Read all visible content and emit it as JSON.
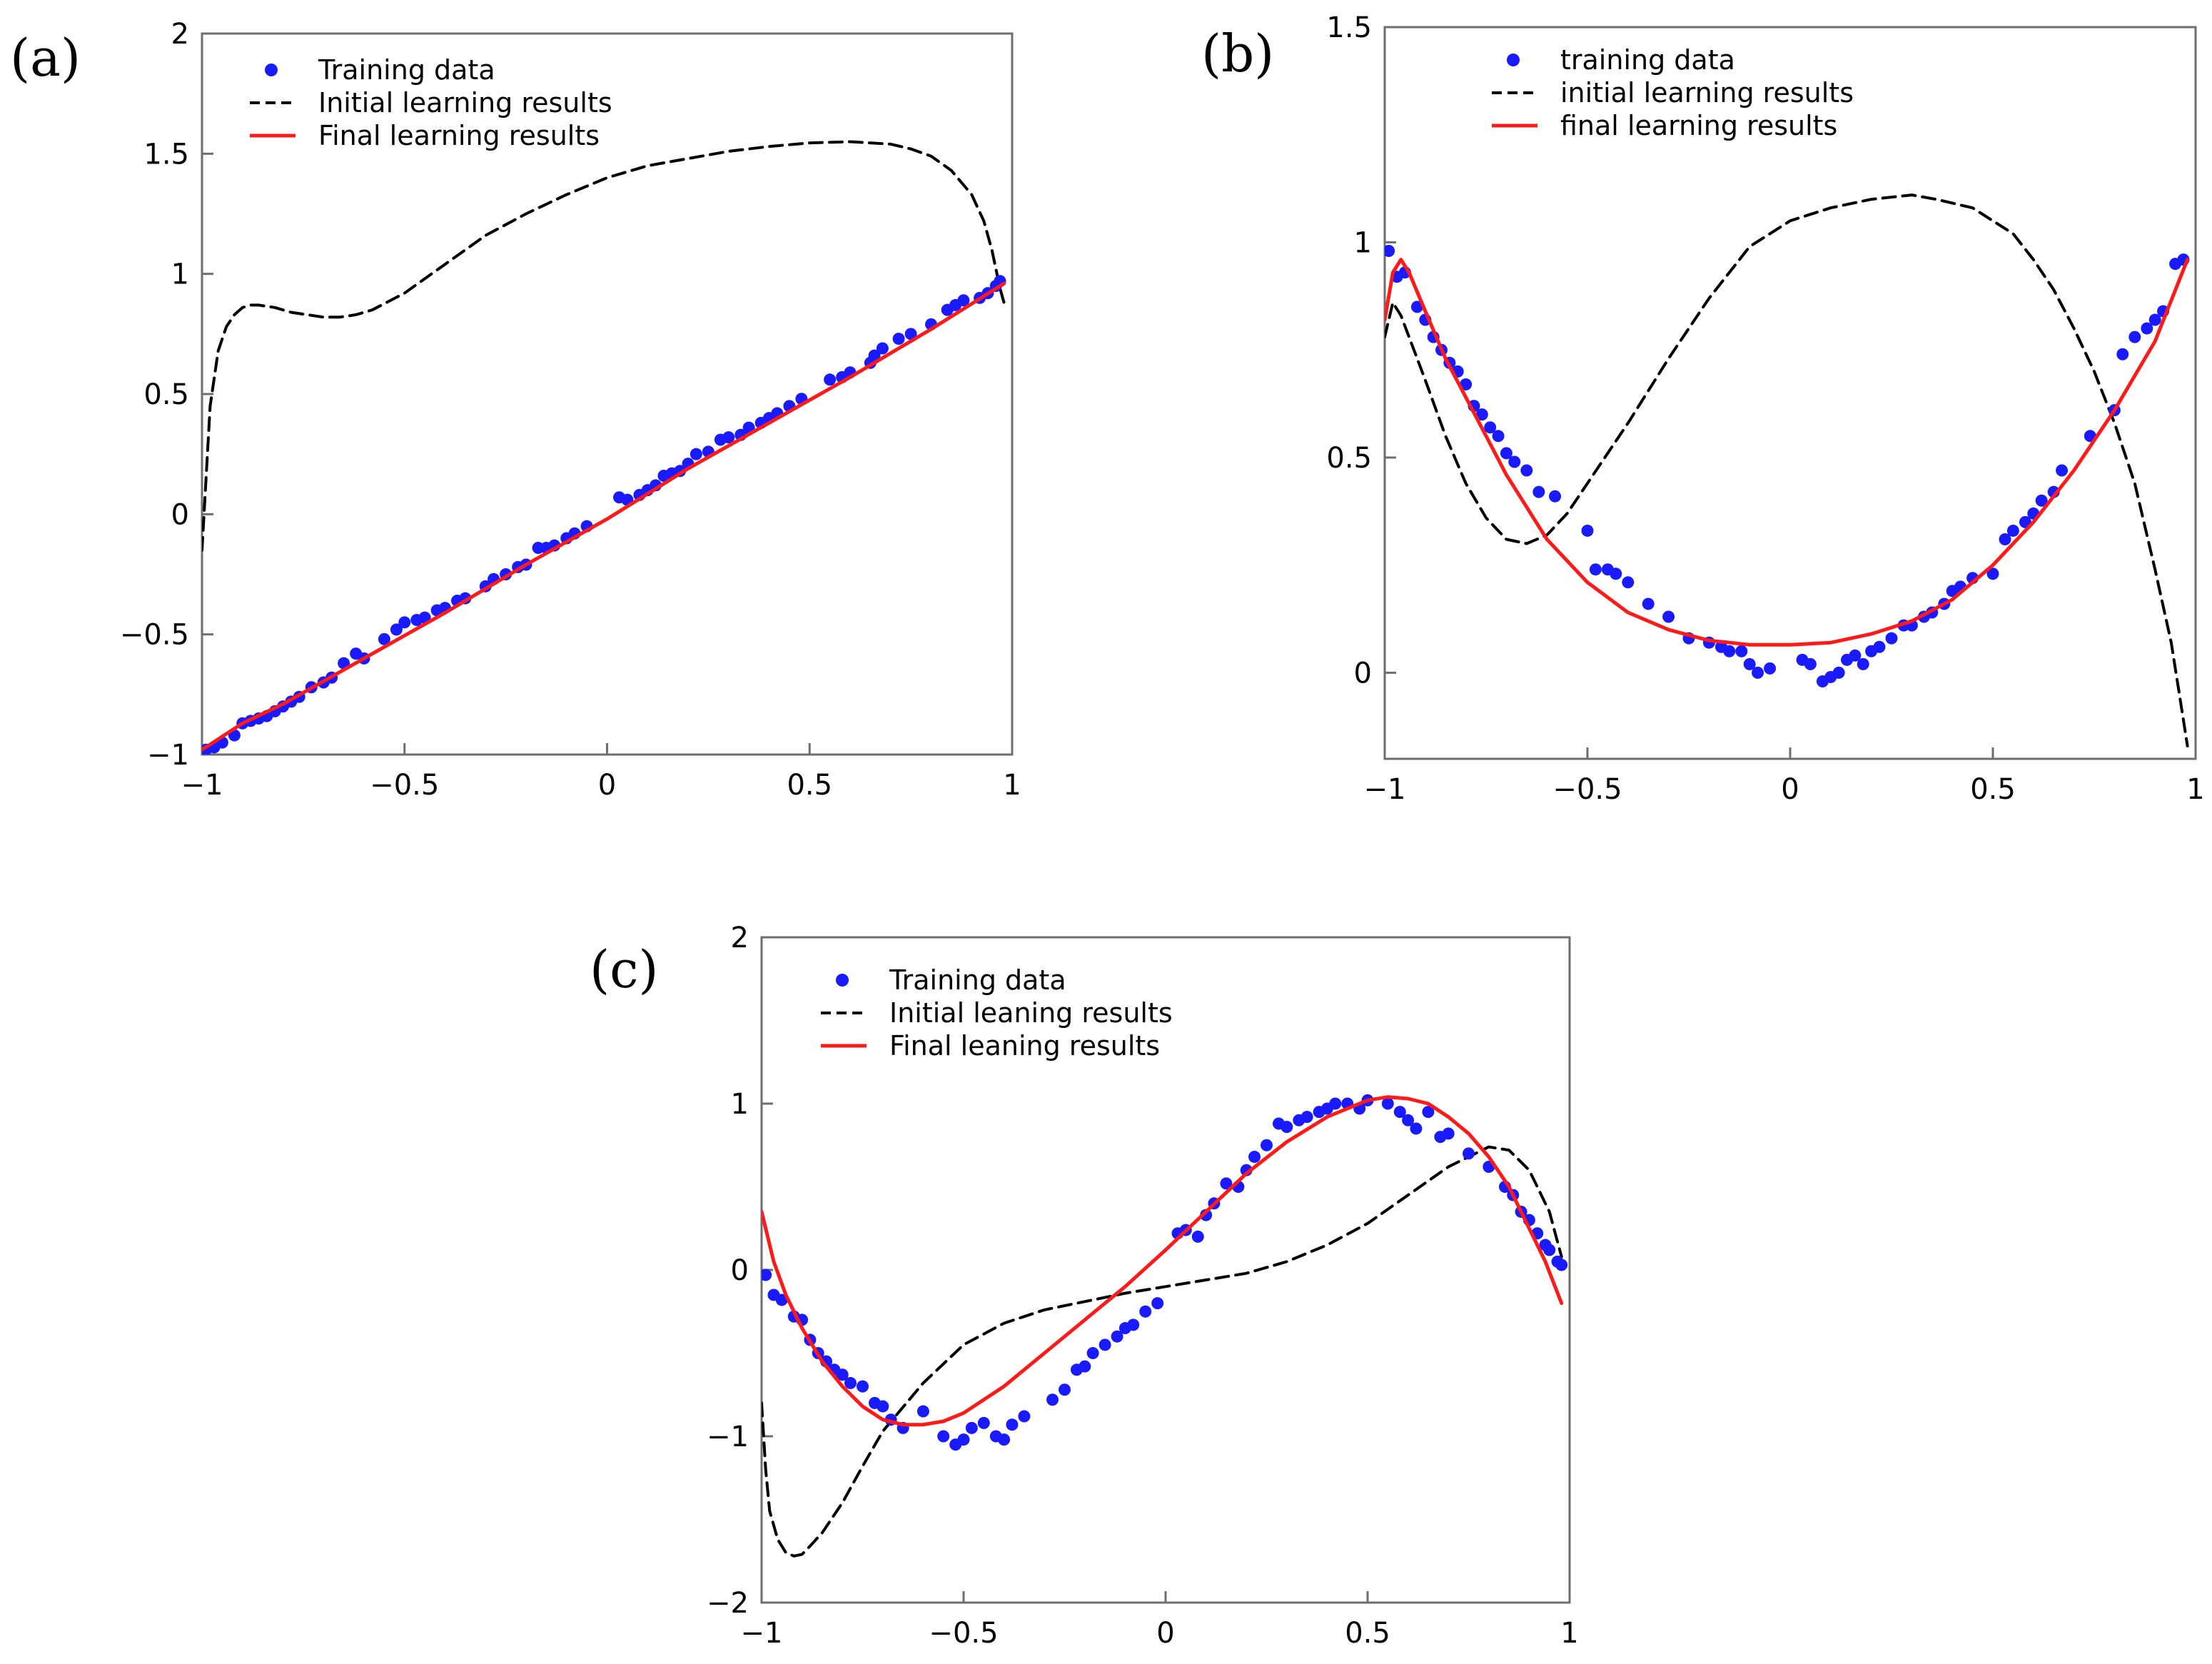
{
  "figure": {
    "colors": {
      "training": "#1a1aff",
      "initial": "#000000",
      "final": "#ff1a1a",
      "axis": "#6e6e6e"
    }
  },
  "chart_data": [
    {
      "panel": "(a)",
      "type": "scatter",
      "xlim": [
        -1,
        1
      ],
      "ylim": [
        -1,
        2
      ],
      "xticks": [
        -1,
        -0.5,
        0,
        0.5,
        1
      ],
      "yticks": [
        -1,
        -0.5,
        0,
        0.5,
        1,
        1.5,
        2
      ],
      "xtick_labels": [
        "−1",
        "−0.5",
        "0",
        "0.5",
        "1"
      ],
      "ytick_labels": [
        "−1",
        "−0.5",
        "0",
        "0.5",
        "1",
        "1.5",
        "2"
      ],
      "legend_placement": "top-left",
      "series": [
        {
          "name": "Training data",
          "kind": "points",
          "x": [
            -0.99,
            -0.97,
            -0.95,
            -0.92,
            -0.9,
            -0.88,
            -0.86,
            -0.84,
            -0.82,
            -0.8,
            -0.78,
            -0.76,
            -0.73,
            -0.7,
            -0.68,
            -0.65,
            -0.62,
            -0.6,
            -0.55,
            -0.52,
            -0.5,
            -0.47,
            -0.45,
            -0.42,
            -0.4,
            -0.37,
            -0.35,
            -0.3,
            -0.28,
            -0.25,
            -0.22,
            -0.2,
            -0.17,
            -0.15,
            -0.13,
            -0.1,
            -0.08,
            -0.05,
            0.03,
            0.05,
            0.08,
            0.1,
            0.12,
            0.14,
            0.16,
            0.18,
            0.2,
            0.22,
            0.25,
            0.28,
            0.3,
            0.33,
            0.35,
            0.38,
            0.4,
            0.42,
            0.45,
            0.48,
            0.55,
            0.58,
            0.6,
            0.65,
            0.66,
            0.68,
            0.72,
            0.75,
            0.8,
            0.84,
            0.86,
            0.88,
            0.92,
            0.94,
            0.96,
            0.97
          ],
          "y": [
            -0.98,
            -0.97,
            -0.95,
            -0.92,
            -0.87,
            -0.86,
            -0.85,
            -0.84,
            -0.82,
            -0.8,
            -0.78,
            -0.76,
            -0.72,
            -0.7,
            -0.68,
            -0.62,
            -0.58,
            -0.6,
            -0.52,
            -0.48,
            -0.45,
            -0.44,
            -0.43,
            -0.4,
            -0.39,
            -0.36,
            -0.35,
            -0.3,
            -0.27,
            -0.25,
            -0.22,
            -0.21,
            -0.14,
            -0.14,
            -0.13,
            -0.1,
            -0.08,
            -0.05,
            0.07,
            0.06,
            0.08,
            0.1,
            0.12,
            0.16,
            0.17,
            0.18,
            0.21,
            0.25,
            0.26,
            0.31,
            0.32,
            0.33,
            0.36,
            0.38,
            0.4,
            0.42,
            0.45,
            0.48,
            0.56,
            0.57,
            0.59,
            0.63,
            0.66,
            0.69,
            0.73,
            0.75,
            0.79,
            0.85,
            0.87,
            0.89,
            0.9,
            0.92,
            0.95,
            0.97
          ]
        },
        {
          "name": "Initial learning results",
          "kind": "dashed",
          "x": [
            -1,
            -0.99,
            -0.98,
            -0.96,
            -0.94,
            -0.92,
            -0.9,
            -0.88,
            -0.86,
            -0.82,
            -0.78,
            -0.74,
            -0.7,
            -0.66,
            -0.62,
            -0.58,
            -0.5,
            -0.4,
            -0.3,
            -0.2,
            -0.1,
            0,
            0.1,
            0.2,
            0.3,
            0.4,
            0.5,
            0.6,
            0.7,
            0.75,
            0.8,
            0.85,
            0.9,
            0.93,
            0.95,
            0.96,
            0.97,
            0.98
          ],
          "y": [
            -0.15,
            0.15,
            0.45,
            0.68,
            0.78,
            0.83,
            0.86,
            0.87,
            0.87,
            0.86,
            0.84,
            0.83,
            0.82,
            0.82,
            0.83,
            0.85,
            0.92,
            1.04,
            1.16,
            1.25,
            1.33,
            1.4,
            1.45,
            1.48,
            1.51,
            1.53,
            1.545,
            1.55,
            1.54,
            1.52,
            1.49,
            1.43,
            1.33,
            1.22,
            1.1,
            1.02,
            0.94,
            0.88
          ]
        },
        {
          "name": "Final learning results",
          "kind": "solid",
          "x": [
            -1,
            -0.9,
            -0.8,
            -0.6,
            -0.4,
            -0.2,
            0,
            0.2,
            0.4,
            0.6,
            0.8,
            0.98
          ],
          "y": [
            -0.98,
            -0.87,
            -0.79,
            -0.6,
            -0.41,
            -0.21,
            -0.02,
            0.19,
            0.38,
            0.57,
            0.77,
            0.96
          ]
        }
      ]
    },
    {
      "panel": "(b)",
      "type": "scatter",
      "xlim": [
        -1,
        1
      ],
      "ylim": [
        -0.2,
        1.5
      ],
      "xticks": [
        -1,
        -0.5,
        0,
        0.5,
        1
      ],
      "yticks": [
        0,
        0.5,
        1,
        1.5
      ],
      "xtick_labels": [
        "−1",
        "−0.5",
        "0",
        "0.5",
        "1"
      ],
      "ytick_labels": [
        "0",
        "0.5",
        "1",
        "1.5"
      ],
      "legend_placement": "top-left",
      "series": [
        {
          "name": "training data",
          "kind": "points",
          "x": [
            -0.99,
            -0.97,
            -0.95,
            -0.92,
            -0.9,
            -0.88,
            -0.86,
            -0.84,
            -0.82,
            -0.8,
            -0.78,
            -0.76,
            -0.74,
            -0.72,
            -0.7,
            -0.68,
            -0.65,
            -0.62,
            -0.58,
            -0.5,
            -0.48,
            -0.45,
            -0.43,
            -0.4,
            -0.35,
            -0.3,
            -0.25,
            -0.2,
            -0.17,
            -0.15,
            -0.12,
            -0.1,
            -0.08,
            -0.05,
            0.03,
            0.05,
            0.08,
            0.1,
            0.12,
            0.14,
            0.16,
            0.18,
            0.2,
            0.22,
            0.25,
            0.28,
            0.3,
            0.33,
            0.35,
            0.38,
            0.4,
            0.42,
            0.45,
            0.5,
            0.53,
            0.55,
            0.58,
            0.6,
            0.62,
            0.65,
            0.67,
            0.74,
            0.8,
            0.82,
            0.85,
            0.88,
            0.9,
            0.92,
            0.95,
            0.97
          ],
          "y": [
            0.98,
            0.92,
            0.93,
            0.85,
            0.82,
            0.78,
            0.75,
            0.72,
            0.7,
            0.67,
            0.62,
            0.6,
            0.57,
            0.55,
            0.51,
            0.49,
            0.47,
            0.42,
            0.41,
            0.33,
            0.24,
            0.24,
            0.23,
            0.21,
            0.16,
            0.13,
            0.08,
            0.07,
            0.06,
            0.05,
            0.05,
            0.02,
            0.0,
            0.01,
            0.03,
            0.02,
            -0.02,
            -0.01,
            0.0,
            0.03,
            0.04,
            0.02,
            0.05,
            0.06,
            0.08,
            0.11,
            0.11,
            0.13,
            0.14,
            0.16,
            0.19,
            0.2,
            0.22,
            0.23,
            0.31,
            0.33,
            0.35,
            0.37,
            0.4,
            0.42,
            0.47,
            0.55,
            0.61,
            0.74,
            0.78,
            0.8,
            0.82,
            0.84,
            0.95,
            0.96
          ]
        },
        {
          "name": "initial learning results",
          "kind": "dashed",
          "x": [
            -1,
            -0.98,
            -0.96,
            -0.94,
            -0.9,
            -0.85,
            -0.8,
            -0.75,
            -0.7,
            -0.65,
            -0.6,
            -0.55,
            -0.5,
            -0.4,
            -0.3,
            -0.2,
            -0.1,
            0,
            0.1,
            0.2,
            0.3,
            0.36,
            0.45,
            0.5,
            0.55,
            0.6,
            0.65,
            0.7,
            0.75,
            0.8,
            0.85,
            0.9,
            0.94,
            0.96,
            0.98
          ],
          "y": [
            0.78,
            0.86,
            0.83,
            0.78,
            0.68,
            0.55,
            0.44,
            0.36,
            0.31,
            0.3,
            0.32,
            0.37,
            0.44,
            0.58,
            0.73,
            0.87,
            0.99,
            1.05,
            1.08,
            1.1,
            1.11,
            1.1,
            1.08,
            1.05,
            1.02,
            0.96,
            0.89,
            0.8,
            0.7,
            0.58,
            0.44,
            0.24,
            0.07,
            -0.05,
            -0.17
          ]
        },
        {
          "name": "final learning  results",
          "kind": "solid",
          "x": [
            -1,
            -0.98,
            -0.96,
            -0.94,
            -0.9,
            -0.85,
            -0.8,
            -0.7,
            -0.6,
            -0.5,
            -0.4,
            -0.3,
            -0.2,
            -0.1,
            0,
            0.1,
            0.2,
            0.3,
            0.4,
            0.5,
            0.6,
            0.7,
            0.8,
            0.9,
            0.98
          ],
          "y": [
            0.82,
            0.93,
            0.96,
            0.93,
            0.84,
            0.73,
            0.64,
            0.46,
            0.31,
            0.21,
            0.14,
            0.1,
            0.075,
            0.065,
            0.065,
            0.07,
            0.09,
            0.12,
            0.17,
            0.25,
            0.35,
            0.47,
            0.61,
            0.77,
            0.96
          ]
        }
      ]
    },
    {
      "panel": "(c)",
      "type": "scatter",
      "xlim": [
        -1,
        1
      ],
      "ylim": [
        -2,
        2
      ],
      "xticks": [
        -1,
        -0.5,
        0,
        0.5,
        1
      ],
      "yticks": [
        -2,
        -1,
        0,
        1,
        2
      ],
      "xtick_labels": [
        "−1",
        "−0.5",
        "0",
        "0.5",
        "1"
      ],
      "ytick_labels": [
        "−2",
        "−1",
        "0",
        "1",
        "2"
      ],
      "legend_placement": "top-left",
      "series": [
        {
          "name": "Training data",
          "kind": "points",
          "x": [
            -0.99,
            -0.97,
            -0.95,
            -0.92,
            -0.9,
            -0.88,
            -0.86,
            -0.84,
            -0.82,
            -0.8,
            -0.78,
            -0.75,
            -0.72,
            -0.7,
            -0.68,
            -0.65,
            -0.6,
            -0.55,
            -0.52,
            -0.5,
            -0.48,
            -0.45,
            -0.42,
            -0.4,
            -0.38,
            -0.35,
            -0.28,
            -0.25,
            -0.22,
            -0.2,
            -0.18,
            -0.15,
            -0.12,
            -0.1,
            -0.08,
            -0.05,
            -0.02,
            0.03,
            0.05,
            0.08,
            0.1,
            0.12,
            0.15,
            0.18,
            0.2,
            0.22,
            0.25,
            0.28,
            0.3,
            0.33,
            0.35,
            0.38,
            0.4,
            0.42,
            0.45,
            0.48,
            0.5,
            0.55,
            0.58,
            0.6,
            0.62,
            0.65,
            0.68,
            0.7,
            0.75,
            0.8,
            0.84,
            0.86,
            0.88,
            0.9,
            0.92,
            0.94,
            0.95,
            0.97,
            0.98
          ],
          "y": [
            -0.03,
            -0.15,
            -0.18,
            -0.28,
            -0.3,
            -0.42,
            -0.5,
            -0.55,
            -0.6,
            -0.63,
            -0.68,
            -0.7,
            -0.8,
            -0.82,
            -0.9,
            -0.95,
            -0.85,
            -1.0,
            -1.05,
            -1.02,
            -0.95,
            -0.92,
            -1.0,
            -1.02,
            -0.93,
            -0.88,
            -0.78,
            -0.72,
            -0.6,
            -0.58,
            -0.5,
            -0.45,
            -0.4,
            -0.35,
            -0.33,
            -0.25,
            -0.2,
            0.22,
            0.24,
            0.2,
            0.33,
            0.4,
            0.52,
            0.5,
            0.6,
            0.68,
            0.75,
            0.88,
            0.86,
            0.9,
            0.92,
            0.95,
            0.97,
            1.0,
            1.0,
            0.97,
            1.02,
            1.0,
            0.95,
            0.9,
            0.85,
            0.95,
            0.8,
            0.82,
            0.7,
            0.62,
            0.5,
            0.45,
            0.35,
            0.3,
            0.22,
            0.15,
            0.12,
            0.05,
            0.03
          ]
        },
        {
          "name": "Initial leaning results",
          "kind": "dashed",
          "x": [
            -1,
            -0.99,
            -0.98,
            -0.96,
            -0.94,
            -0.92,
            -0.9,
            -0.88,
            -0.85,
            -0.8,
            -0.75,
            -0.7,
            -0.6,
            -0.5,
            -0.4,
            -0.3,
            -0.2,
            -0.1,
            0,
            0.1,
            0.2,
            0.3,
            0.4,
            0.5,
            0.6,
            0.7,
            0.8,
            0.85,
            0.9,
            0.95,
            0.98
          ],
          "y": [
            -0.8,
            -1.2,
            -1.45,
            -1.62,
            -1.7,
            -1.72,
            -1.71,
            -1.66,
            -1.58,
            -1.4,
            -1.18,
            -0.97,
            -0.68,
            -0.45,
            -0.32,
            -0.24,
            -0.19,
            -0.14,
            -0.1,
            -0.06,
            -0.02,
            0.05,
            0.15,
            0.28,
            0.45,
            0.62,
            0.74,
            0.72,
            0.6,
            0.35,
            0.08
          ]
        },
        {
          "name": "Final leaning results",
          "kind": "solid",
          "x": [
            -1,
            -0.97,
            -0.94,
            -0.9,
            -0.85,
            -0.8,
            -0.75,
            -0.7,
            -0.65,
            -0.6,
            -0.55,
            -0.5,
            -0.4,
            -0.3,
            -0.2,
            -0.1,
            0,
            0.1,
            0.2,
            0.3,
            0.4,
            0.5,
            0.55,
            0.6,
            0.65,
            0.7,
            0.75,
            0.8,
            0.85,
            0.9,
            0.94,
            0.98
          ],
          "y": [
            0.35,
            0.05,
            -0.15,
            -0.35,
            -0.55,
            -0.7,
            -0.82,
            -0.9,
            -0.93,
            -0.93,
            -0.91,
            -0.86,
            -0.7,
            -0.5,
            -0.3,
            -0.1,
            0.12,
            0.35,
            0.58,
            0.77,
            0.92,
            1.02,
            1.04,
            1.03,
            1.0,
            0.92,
            0.82,
            0.68,
            0.5,
            0.25,
            0.05,
            -0.2
          ]
        }
      ]
    }
  ]
}
